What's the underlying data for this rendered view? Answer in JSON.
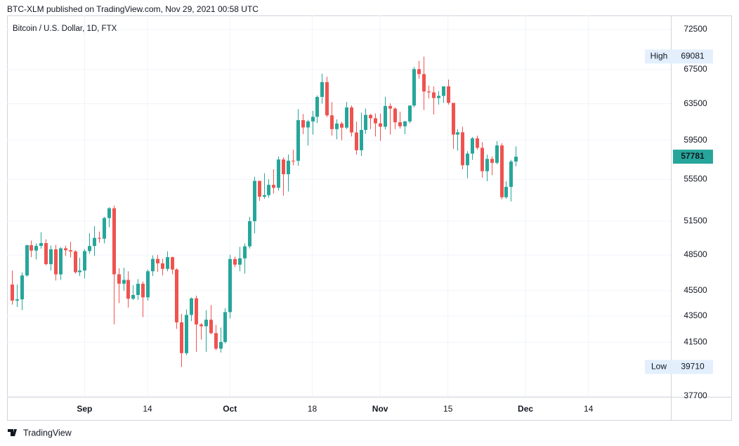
{
  "header": {
    "title": "BTC-XLM published on TradingView.com, Nov 29, 2021 00:58 UTC"
  },
  "chart_data": {
    "type": "candlestick",
    "title": "Bitcoin / U.S. Dollar, 1D, FTX",
    "log_scale": true,
    "grid": true,
    "up_color": "#26a69a",
    "down_color": "#ef5350",
    "max_label": "High",
    "min_label": "Low",
    "x": [
      "Aug 17",
      "Aug 18",
      "Aug 19",
      "Aug 20",
      "Aug 21",
      "Aug 22",
      "Aug 23",
      "Aug 24",
      "Aug 25",
      "Aug 26",
      "Aug 27",
      "Aug 28",
      "Aug 29",
      "Aug 30",
      "Aug 31",
      "Sep 1",
      "Sep 2",
      "Sep 3",
      "Sep 4",
      "Sep 5",
      "Sep 6",
      "Sep 7",
      "Sep 8",
      "Sep 9",
      "Sep 10",
      "Sep 11",
      "Sep 12",
      "Sep 13",
      "Sep 14",
      "Sep 15",
      "Sep 16",
      "Sep 17",
      "Sep 18",
      "Sep 19",
      "Sep 20",
      "Sep 21",
      "Sep 22",
      "Sep 23",
      "Sep 24",
      "Sep 25",
      "Sep 26",
      "Sep 27",
      "Sep 28",
      "Sep 29",
      "Sep 30",
      "Oct 1",
      "Oct 2",
      "Oct 3",
      "Oct 4",
      "Oct 5",
      "Oct 6",
      "Oct 7",
      "Oct 8",
      "Oct 9",
      "Oct 10",
      "Oct 11",
      "Oct 12",
      "Oct 13",
      "Oct 14",
      "Oct 15",
      "Oct 16",
      "Oct 17",
      "Oct 18",
      "Oct 19",
      "Oct 20",
      "Oct 21",
      "Oct 22",
      "Oct 23",
      "Oct 24",
      "Oct 25",
      "Oct 26",
      "Oct 27",
      "Oct 28",
      "Oct 29",
      "Oct 30",
      "Oct 31",
      "Nov 1",
      "Nov 2",
      "Nov 3",
      "Nov 4",
      "Nov 5",
      "Nov 6",
      "Nov 7",
      "Nov 8",
      "Nov 9",
      "Nov 10",
      "Nov 11",
      "Nov 12",
      "Nov 13",
      "Nov 14",
      "Nov 15",
      "Nov 16",
      "Nov 17",
      "Nov 18",
      "Nov 19",
      "Nov 20",
      "Nov 21",
      "Nov 22",
      "Nov 23",
      "Nov 24",
      "Nov 25",
      "Nov 26",
      "Nov 27",
      "Nov 28",
      "Nov 29"
    ],
    "open": [
      46000,
      44700,
      44800,
      46750,
      49340,
      48870,
      49280,
      49530,
      47700,
      48980,
      46840,
      49070,
      48900,
      48790,
      47020,
      47160,
      48830,
      49270,
      49990,
      49920,
      51790,
      52700,
      46850,
      46070,
      46380,
      44850,
      45150,
      46060,
      44960,
      47100,
      48150,
      47770,
      47300,
      48300,
      47250,
      43000,
      40700,
      43570,
      44880,
      42840,
      42700,
      43200,
      42180,
      41030,
      41520,
      43790,
      48140,
      47660,
      48200,
      49240,
      51500,
      55340,
      53800,
      53950,
      54950,
      54660,
      57490,
      56000,
      57370,
      57360,
      61670,
      60870,
      61530,
      62040,
      64280,
      66000,
      62200,
      60690,
      61300,
      60850,
      63080,
      60330,
      58450,
      60600,
      62250,
      61880,
      61320,
      60950,
      63250,
      62950,
      61440,
      61000,
      61530,
      63300,
      67550,
      66950,
      64900,
      64800,
      64150,
      64400,
      65500,
      63600,
      60100,
      60350,
      56900,
      58100,
      59700,
      58700,
      56300,
      57550,
      57150,
      58950,
      53750,
      54750,
      57280
    ],
    "high": [
      47160,
      46000,
      47000,
      49380,
      49750,
      49500,
      50500,
      49860,
      49300,
      49370,
      49170,
      49300,
      49650,
      48900,
      48250,
      49000,
      50400,
      51050,
      50560,
      51900,
      52800,
      52950,
      47350,
      47400,
      47100,
      45950,
      46450,
      46250,
      47250,
      48450,
      48500,
      48150,
      48800,
      48350,
      47350,
      43650,
      44000,
      44950,
      45100,
      42950,
      43950,
      44350,
      42800,
      42600,
      44100,
      48500,
      48350,
      49200,
      49500,
      51900,
      55750,
      55350,
      56100,
      55500,
      56500,
      57800,
      57700,
      58000,
      58500,
      62900,
      62350,
      61700,
      62700,
      64450,
      67000,
      66650,
      63700,
      61750,
      61500,
      63700,
      63300,
      61500,
      62500,
      62950,
      62350,
      62400,
      62400,
      64300,
      63550,
      63100,
      62600,
      61600,
      63300,
      67800,
      68550,
      69081,
      65600,
      65500,
      64950,
      65500,
      66300,
      63600,
      60700,
      60950,
      58350,
      59850,
      60000,
      59300,
      58000,
      57800,
      59400,
      59200,
      55300,
      57450,
      58850
    ],
    "low": [
      44380,
      44200,
      43950,
      46650,
      48300,
      48100,
      49030,
      47600,
      47150,
      46330,
      46380,
      48400,
      48270,
      46900,
      46700,
      46500,
      48600,
      48400,
      49550,
      49500,
      50950,
      42840,
      44500,
      45500,
      44150,
      44750,
      44750,
      43400,
      44700,
      46700,
      47050,
      46750,
      47100,
      46850,
      42500,
      39710,
      40550,
      43100,
      40800,
      41700,
      40800,
      42100,
      40900,
      40750,
      41420,
      43300,
      47450,
      47100,
      46900,
      49050,
      50400,
      53400,
      53600,
      53700,
      54100,
      54400,
      53900,
      54300,
      56900,
      56850,
      60150,
      58950,
      60100,
      61350,
      63500,
      62000,
      60000,
      59600,
      59500,
      60700,
      59900,
      58000,
      57850,
      60200,
      60700,
      59900,
      59450,
      60650,
      60100,
      60700,
      60750,
      60150,
      61350,
      63100,
      66400,
      62800,
      64100,
      62300,
      63400,
      63600,
      63400,
      58600,
      58400,
      56500,
      55600,
      57450,
      58500,
      55650,
      55300,
      55900,
      57000,
      53550,
      53600,
      53350,
      56800
    ],
    "close": [
      44700,
      44800,
      46750,
      49340,
      48870,
      49280,
      49530,
      47700,
      48980,
      46840,
      49070,
      48900,
      48790,
      47020,
      47160,
      48830,
      49270,
      49990,
      49920,
      51790,
      52700,
      46850,
      46070,
      46380,
      44850,
      45150,
      46060,
      44960,
      47100,
      48150,
      47770,
      47300,
      48300,
      47250,
      43000,
      40700,
      43570,
      44880,
      42840,
      42700,
      43200,
      42180,
      41030,
      41520,
      43790,
      48140,
      47660,
      48200,
      49240,
      51500,
      55340,
      53800,
      53950,
      54950,
      54660,
      57490,
      56000,
      57370,
      57360,
      61670,
      60870,
      61530,
      62040,
      64280,
      66000,
      62200,
      60690,
      61300,
      60850,
      63080,
      60330,
      58450,
      60600,
      62250,
      61880,
      61320,
      60950,
      63250,
      62950,
      61440,
      61000,
      61530,
      63300,
      67550,
      66950,
      64900,
      64800,
      64150,
      64400,
      65500,
      63600,
      60100,
      60350,
      56900,
      58100,
      59700,
      58700,
      56300,
      57550,
      57150,
      58950,
      53750,
      54750,
      57280,
      57781
    ],
    "xlim": [
      "Aug 16",
      "Dec 31"
    ],
    "xticks": [
      {
        "value": "Sep 1",
        "label": "Sep"
      },
      {
        "value": "Sep 14",
        "label": "14"
      },
      {
        "value": "Oct 1",
        "label": "Oct"
      },
      {
        "value": "Oct 18",
        "label": "18"
      },
      {
        "value": "Nov 1",
        "label": "Nov"
      },
      {
        "value": "Nov 15",
        "label": "15"
      },
      {
        "value": "Dec 1",
        "label": "Dec"
      },
      {
        "value": "Dec 14",
        "label": "14"
      }
    ],
    "ylim": [
      37650,
      74330
    ],
    "yticks": [
      37700,
      41500,
      43500,
      45500,
      48500,
      51500,
      55500,
      59500,
      63500,
      67500,
      72500
    ]
  },
  "footer": {
    "brand": "TradingView"
  }
}
